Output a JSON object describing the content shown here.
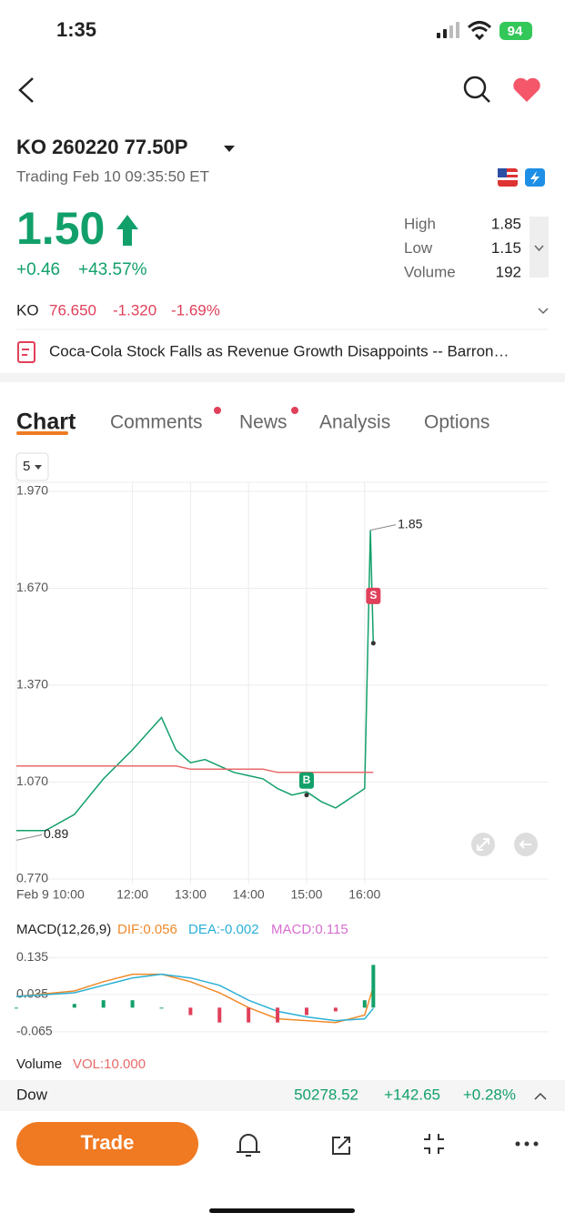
{
  "status_bar": {
    "time": "1:35",
    "battery": "94"
  },
  "header": {
    "title": "KO 260220 77.50P",
    "subtitle": "Trading Feb 10 09:35:50 ET"
  },
  "quote": {
    "price": "1.50",
    "change": "+0.46",
    "change_percent": "+43.57%",
    "stats": [
      {
        "label": "High",
        "value": "1.85"
      },
      {
        "label": "Low",
        "value": "1.15"
      },
      {
        "label": "Volume",
        "value": "192"
      }
    ]
  },
  "underlying": {
    "symbol": "KO",
    "price": "76.650",
    "change": "-1.320",
    "change_percent": "-1.69%"
  },
  "news_headline": "Coca-Cola Stock Falls as Revenue Growth Disappoints -- Barron…",
  "tabs": [
    "Chart",
    "Comments",
    "News",
    "Analysis",
    "Options"
  ],
  "interval": "5",
  "chart_data": [
    {
      "type": "line",
      "x": [
        10,
        10.5,
        11,
        11.5,
        12,
        12.25,
        12.5,
        12.75,
        13,
        13.25,
        13.5,
        13.75,
        14,
        14.25,
        14.5,
        14.75,
        15,
        15.25,
        15.5,
        15.75,
        16,
        16.1,
        16.15
      ],
      "series": [
        {
          "color": "#12a06a",
          "values": [
            0.92,
            0.92,
            0.97,
            1.08,
            1.17,
            1.22,
            1.27,
            1.17,
            1.13,
            1.14,
            1.12,
            1.1,
            1.09,
            1.08,
            1.05,
            1.03,
            1.04,
            1.01,
            0.99,
            1.02,
            1.05,
            1.85,
            1.5
          ]
        },
        {
          "color": "#e86a6a",
          "values": [
            1.12,
            1.12,
            1.12,
            1.12,
            1.12,
            1.12,
            1.12,
            1.12,
            1.11,
            1.11,
            1.11,
            1.11,
            1.11,
            1.11,
            1.1,
            1.1,
            1.1,
            1.1,
            1.1,
            1.1,
            1.1,
            1.1,
            1.1
          ]
        }
      ],
      "xlim": [
        10,
        19.17
      ],
      "xticks": [
        {
          "value": 10,
          "label": "Feb 9 10:00"
        },
        {
          "value": 12,
          "label": "12:00"
        },
        {
          "value": 13,
          "label": "13:00"
        },
        {
          "value": 14,
          "label": "14:00"
        },
        {
          "value": 15,
          "label": "15:00"
        },
        {
          "value": 16,
          "label": "16:00"
        }
      ],
      "ylim": [
        0.77,
        1.97
      ],
      "yticks": [
        {
          "value": 1.97,
          "label": "1.970"
        },
        {
          "value": 1.67,
          "label": "1.670"
        },
        {
          "value": 1.37,
          "label": "1.370"
        },
        {
          "value": 1.07,
          "label": "1.070"
        },
        {
          "value": 0.77,
          "label": "0.770"
        }
      ],
      "grid": true,
      "annotations": [
        {
          "text": "1.85",
          "x": 16.1,
          "y": 1.85
        },
        {
          "text": "0.89",
          "x": 10,
          "y": 0.89
        }
      ],
      "trade_markers": [
        {
          "label": "B",
          "x": 15,
          "y": 1.03,
          "color": "#12a06a"
        },
        {
          "label": "S",
          "x": 16.15,
          "y": 1.5,
          "color": "#e0405a"
        }
      ]
    },
    {
      "type": "line",
      "title": "MACD(12,26,9)",
      "x": [
        10,
        11,
        11.5,
        12,
        12.5,
        13,
        13.5,
        14,
        14.5,
        15,
        15.5,
        16,
        16.15
      ],
      "series": [
        {
          "name": "DIF:0.056",
          "color": "#f08a2a",
          "values": [
            0.03,
            0.045,
            0.07,
            0.09,
            0.09,
            0.07,
            0.04,
            0,
            -0.03,
            -0.035,
            -0.04,
            -0.02,
            0.056
          ]
        },
        {
          "name": "DEA:-0.002",
          "color": "#2ab0d6",
          "values": [
            0.03,
            0.04,
            0.06,
            0.08,
            0.09,
            0.08,
            0.06,
            0.02,
            -0.01,
            -0.025,
            -0.035,
            -0.03,
            -0.002
          ]
        },
        {
          "name": "MACD:0.115",
          "type": "bar",
          "color": "#d66fd0",
          "positive_color": "#12a06a",
          "negative_color": "#e0405a",
          "values": [
            0,
            0.01,
            0.02,
            0.02,
            0,
            -0.02,
            -0.04,
            -0.04,
            -0.04,
            -0.02,
            -0.01,
            0.02,
            0.115
          ]
        }
      ],
      "xlim": [
        10,
        19.17
      ],
      "ylim": [
        -0.08,
        0.16
      ],
      "yticks": [
        0.135,
        0.035,
        -0.065
      ]
    }
  ],
  "volume": {
    "label": "Volume",
    "value": "VOL:10.000"
  },
  "index_ticker": {
    "name": "Dow",
    "price": "50278.52",
    "change": "+142.65",
    "change_percent": "+0.28%"
  },
  "toolbar": {
    "trade": "Trade"
  }
}
